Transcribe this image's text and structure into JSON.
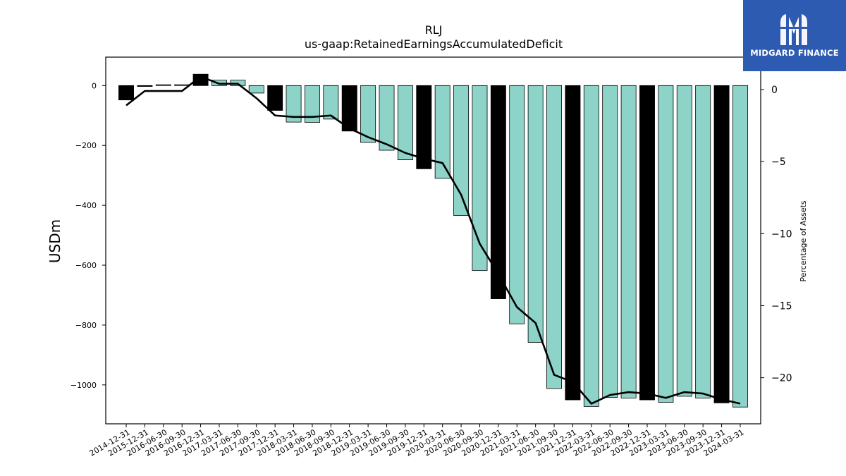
{
  "chart_data": {
    "type": "bar",
    "title": "RLJ",
    "subtitle": "us-gaap:RetainedEarningsAccumulatedDeficit",
    "ylabel": "USDm",
    "y2label": "Percentage of Assets",
    "ylim": [
      -1130,
      95
    ],
    "y2lim": [
      -23.2,
      2.25
    ],
    "yticks": [
      0,
      -200,
      -400,
      -600,
      -800,
      -1000
    ],
    "y2ticks": [
      0,
      -5,
      -10,
      -15,
      -20
    ],
    "grid": false,
    "categories": [
      "2014-12-31",
      "2015-12-31",
      "2016-06-30",
      "2016-09-30",
      "2016-12-31",
      "2017-03-31",
      "2017-06-30",
      "2017-09-30",
      "2017-12-31",
      "2018-03-31",
      "2018-06-30",
      "2018-09-30",
      "2018-12-31",
      "2019-03-31",
      "2019-06-30",
      "2019-09-30",
      "2019-12-31",
      "2020-03-31",
      "2020-06-30",
      "2020-09-30",
      "2020-12-31",
      "2021-03-31",
      "2021-06-30",
      "2021-09-30",
      "2021-12-31",
      "2022-03-31",
      "2022-06-30",
      "2022-09-30",
      "2022-12-31",
      "2023-03-31",
      "2023-06-30",
      "2023-09-30",
      "2023-12-31",
      "2024-03-31"
    ],
    "series": [
      {
        "values": [
          -48,
          -3,
          3,
          3,
          38,
          18,
          18,
          -25,
          -83,
          -122,
          -123,
          -112,
          -152,
          -190,
          -216,
          -248,
          -278,
          -310,
          -434,
          -618,
          -712,
          -796,
          -858,
          -1012,
          -1050,
          -1072,
          -1042,
          -1044,
          -1050,
          -1058,
          -1038,
          -1044,
          -1060,
          -1074
        ]
      },
      {
        "type": "line",
        "axis": "right",
        "values": [
          -1.1,
          -0.1,
          -0.1,
          -0.1,
          0.9,
          0.4,
          0.4,
          -0.6,
          -1.8,
          -1.9,
          -1.9,
          -1.8,
          -2.7,
          -3.3,
          -3.8,
          -4.4,
          -4.8,
          -5.1,
          -7.3,
          -10.7,
          -12.8,
          -15.1,
          -16.2,
          -19.8,
          -20.3,
          -21.8,
          -21.2,
          -21.0,
          -21.1,
          -21.4,
          -21.0,
          -21.1,
          -21.5,
          -21.8
        ]
      }
    ],
    "colors": {
      "bar_regular": "#8dd3c7",
      "bar_year_end": "#000000",
      "bar_edge": "#000000",
      "line": "#000000"
    }
  },
  "brand": {
    "logo_text": "MIDGARD FINANCE",
    "logo_icon": "midgard-m-icon",
    "background": "#2c5bb1"
  }
}
